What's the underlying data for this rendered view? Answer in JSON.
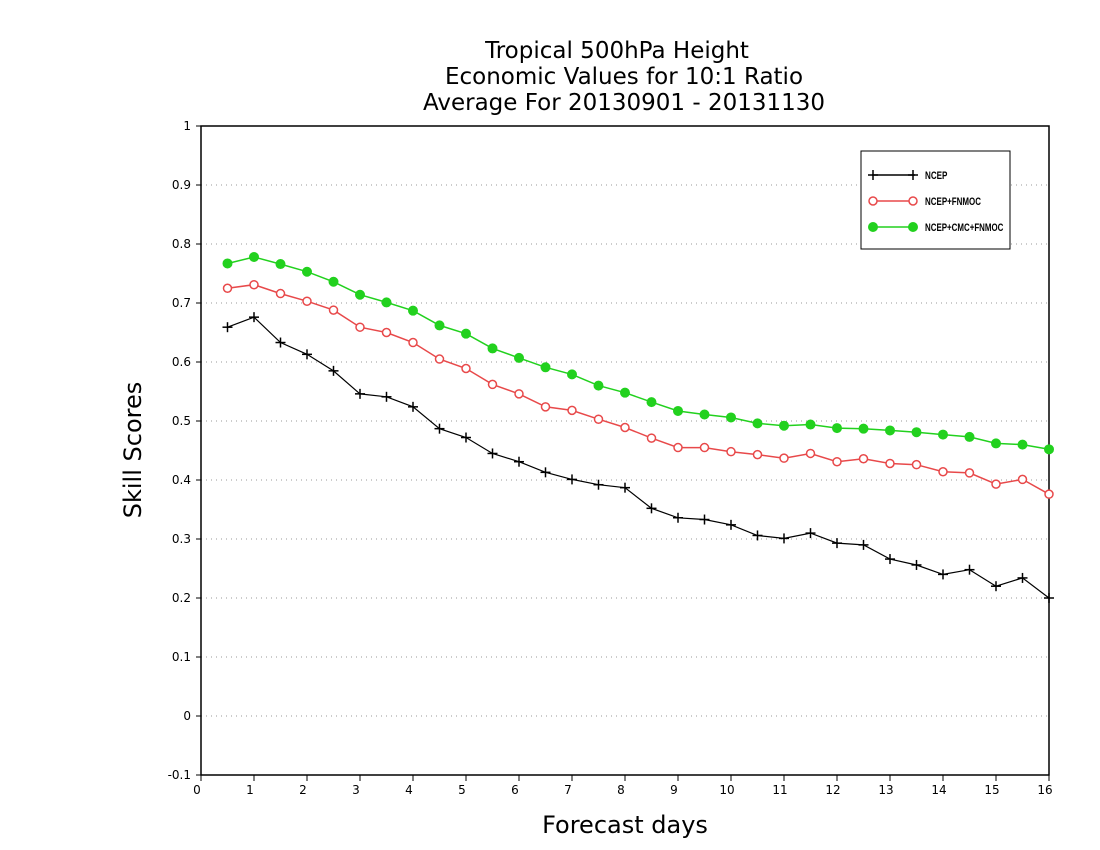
{
  "chart_data": {
    "type": "line",
    "title": [
      "Tropical 500hPa Height",
      "Economic Values for 10:1 Ratio",
      "Average For 20130901 - 20131130"
    ],
    "xlabel": "Forecast days",
    "ylabel": "Skill Scores",
    "xlim": [
      0,
      16
    ],
    "ylim": [
      -0.1,
      1
    ],
    "xticks": [
      "0",
      "1",
      "2",
      "3",
      "4",
      "5",
      "6",
      "7",
      "8",
      "9",
      "10",
      "11",
      "12",
      "13",
      "14",
      "15",
      "16"
    ],
    "yticks": [
      "-0.1",
      "0",
      "0.1",
      "0.2",
      "0.3",
      "0.4",
      "0.5",
      "0.6",
      "0.7",
      "0.8",
      "0.9",
      "1"
    ],
    "grid": "horizontal dotted",
    "legend_position": "top-right",
    "x": [
      0.5,
      1,
      1.5,
      2,
      2.5,
      3,
      3.5,
      4,
      4.5,
      5,
      5.5,
      6,
      6.5,
      7,
      7.5,
      8,
      8.5,
      9,
      9.5,
      10,
      10.5,
      11,
      11.5,
      12,
      12.5,
      13,
      13.5,
      14,
      14.5,
      15,
      15.5,
      16
    ],
    "series": [
      {
        "name": "NCEP",
        "color": "#000000",
        "marker": "plus",
        "values": [
          0.659,
          0.676,
          0.633,
          0.613,
          0.585,
          0.546,
          0.541,
          0.524,
          0.487,
          0.472,
          0.445,
          0.431,
          0.413,
          0.401,
          0.392,
          0.387,
          0.352,
          0.336,
          0.333,
          0.324,
          0.306,
          0.301,
          0.31,
          0.293,
          0.29,
          0.266,
          0.256,
          0.24,
          0.248,
          0.22,
          0.234,
          0.2
        ]
      },
      {
        "name": "NCEP+FNMOC",
        "color": "#e8494a",
        "marker": "open-circle",
        "values": [
          0.725,
          0.731,
          0.716,
          0.703,
          0.688,
          0.659,
          0.65,
          0.633,
          0.605,
          0.589,
          0.562,
          0.546,
          0.524,
          0.518,
          0.503,
          0.489,
          0.471,
          0.455,
          0.455,
          0.448,
          0.443,
          0.437,
          0.445,
          0.431,
          0.436,
          0.428,
          0.426,
          0.414,
          0.412,
          0.393,
          0.401,
          0.376
        ]
      },
      {
        "name": "NCEP+CMC+FNMOC",
        "color": "#22d11e",
        "marker": "filled-circle",
        "values": [
          0.767,
          0.778,
          0.766,
          0.753,
          0.736,
          0.714,
          0.701,
          0.687,
          0.662,
          0.648,
          0.623,
          0.607,
          0.591,
          0.579,
          0.56,
          0.548,
          0.532,
          0.517,
          0.511,
          0.506,
          0.496,
          0.492,
          0.494,
          0.488,
          0.487,
          0.484,
          0.481,
          0.477,
          0.473,
          0.462,
          0.46,
          0.452
        ]
      }
    ]
  }
}
